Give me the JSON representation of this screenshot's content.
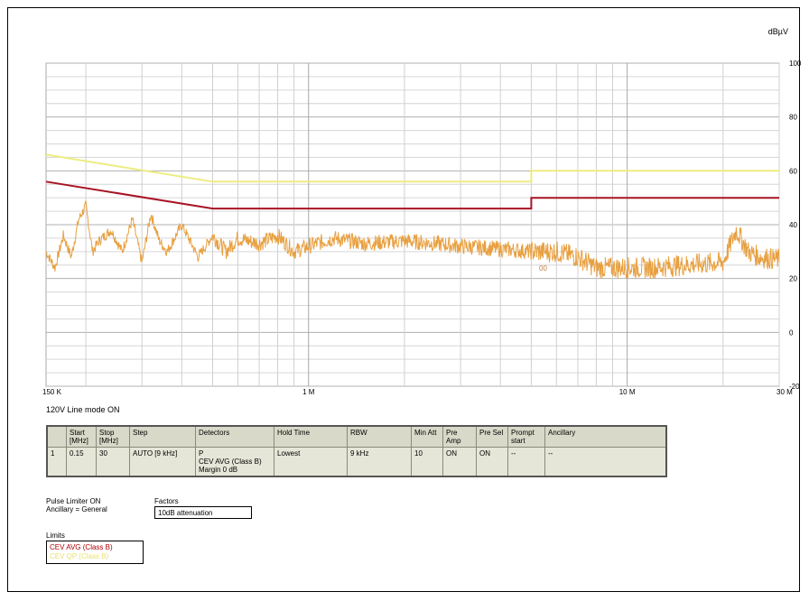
{
  "chart_data": {
    "type": "line",
    "title": "",
    "xlabel": "",
    "ylabel": "dBµV",
    "x_scale": "log",
    "xlim_mhz": [
      0.15,
      30
    ],
    "ylim": [
      -20,
      100
    ],
    "y_ticks": [
      -20,
      0,
      20,
      40,
      60,
      80,
      100
    ],
    "y_tick_labels": [
      "-20",
      "0",
      "20",
      "40",
      "60",
      "80",
      "100"
    ],
    "x_tick_labels": [
      {
        "mhz": 0.15,
        "label": "150 K"
      },
      {
        "mhz": 1,
        "label": "1 M"
      },
      {
        "mhz": 10,
        "label": "10 M"
      },
      {
        "mhz": 30,
        "label": "30 M"
      }
    ],
    "grid": true,
    "series": [
      {
        "kind": "limit",
        "color": "#eeec80",
        "width": 2,
        "points": [
          [
            0.15,
            66
          ],
          [
            0.5,
            56
          ],
          [
            5,
            56
          ],
          [
            5,
            60
          ],
          [
            30,
            60
          ]
        ]
      },
      {
        "kind": "limit",
        "color": "#a81424",
        "width": 2,
        "points": [
          [
            0.15,
            56
          ],
          [
            0.5,
            46
          ],
          [
            5,
            46
          ],
          [
            5,
            50
          ],
          [
            30,
            50
          ]
        ]
      },
      {
        "kind": "measurement",
        "color": "#e8a040",
        "points": [
          [
            0.15,
            30
          ],
          [
            0.16,
            24
          ],
          [
            0.17,
            36
          ],
          [
            0.18,
            28
          ],
          [
            0.19,
            42
          ],
          [
            0.2,
            47
          ],
          [
            0.21,
            30
          ],
          [
            0.22,
            34
          ],
          [
            0.24,
            38
          ],
          [
            0.26,
            30
          ],
          [
            0.28,
            42
          ],
          [
            0.3,
            26
          ],
          [
            0.32,
            44
          ],
          [
            0.34,
            34
          ],
          [
            0.36,
            30
          ],
          [
            0.4,
            40
          ],
          [
            0.45,
            28
          ],
          [
            0.5,
            36
          ],
          [
            0.55,
            30
          ],
          [
            0.6,
            35
          ],
          [
            0.7,
            33
          ],
          [
            0.8,
            36
          ],
          [
            0.9,
            30
          ],
          [
            1.0,
            32
          ],
          [
            1.2,
            35
          ],
          [
            1.5,
            33
          ],
          [
            2,
            34
          ],
          [
            2.5,
            33
          ],
          [
            3,
            32
          ],
          [
            4,
            31
          ],
          [
            5,
            30
          ],
          [
            6,
            30
          ],
          [
            7,
            28
          ],
          [
            8,
            24
          ],
          [
            10,
            24
          ],
          [
            12,
            24
          ],
          [
            15,
            25
          ],
          [
            20,
            26
          ],
          [
            22,
            38
          ],
          [
            24,
            30
          ],
          [
            26,
            28
          ],
          [
            30,
            27
          ]
        ]
      }
    ],
    "annotation": "00"
  },
  "caption": "120V Line mode ON",
  "settings_table": {
    "headers": [
      "",
      "Start\n[MHz]",
      "Stop\n[MHz]",
      "Step",
      "Detectors",
      "Hold Time",
      "RBW",
      "Min Att",
      "Pre Amp",
      "Pre Sel",
      "Prompt\nstart",
      "Ancillary"
    ],
    "row": [
      "1",
      "0.15",
      "30",
      "AUTO [9 kHz]",
      "P\nCEV AVG (Class B)\nMargin 0 dB",
      "Lowest",
      "9 kHz",
      "10",
      "ON",
      "ON",
      "--",
      "--"
    ]
  },
  "info_lines": [
    "Pulse Limiter ON",
    "Ancillary = General"
  ],
  "factors": {
    "title": "Factors",
    "value": "10dB attenuation"
  },
  "limits": {
    "title": "Limits",
    "items": [
      "CEV AVG (Class B)",
      "CEV QP (Class B)"
    ]
  }
}
